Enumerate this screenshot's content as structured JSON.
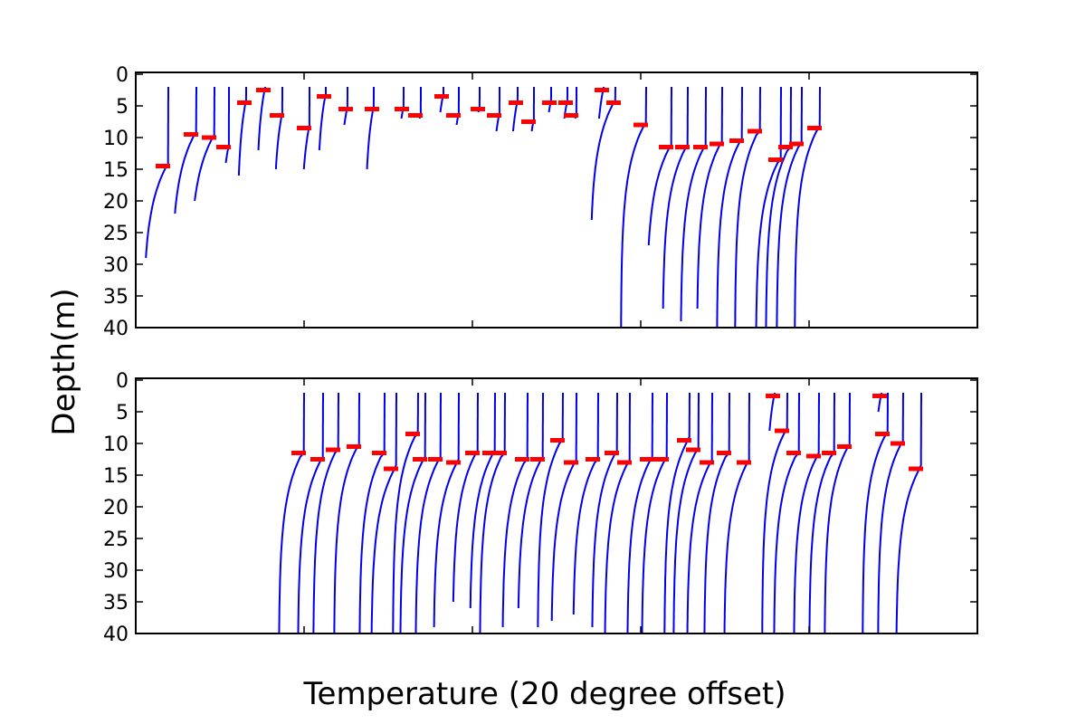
{
  "chart_data": {
    "type": "line",
    "xlabel": "Temperature (20 degree offset)",
    "ylabel": "Depth(m)",
    "ylim": [
      0,
      40
    ],
    "y_inverted": true,
    "yticks": [
      "0",
      "5",
      "10",
      "15",
      "20",
      "25",
      "30",
      "35",
      "40"
    ],
    "x_tick_labels_shown": false,
    "grid": false,
    "legend": "none",
    "colors": {
      "profile": "#0000ee",
      "mixed_layer_marker": "#ff0000"
    },
    "panels": [
      {
        "name": "top",
        "profiles": [
          {
            "x": 186,
            "z": 29,
            "mld": 14.5
          },
          {
            "x": 217,
            "z": 22,
            "mld": 9.5
          },
          {
            "x": 237,
            "z": 20,
            "mld": 10
          },
          {
            "x": 253,
            "z": 14,
            "mld": 11.5
          },
          {
            "x": 272,
            "z": 16,
            "mld": 4.5
          },
          {
            "x": 293,
            "z": 12,
            "mld": 2.5
          },
          {
            "x": 312,
            "z": 15,
            "mld": 6.5
          },
          {
            "x": 342,
            "z": 15,
            "mld": 8.5
          },
          {
            "x": 360,
            "z": 12,
            "mld": 3.5
          },
          {
            "x": 384,
            "z": 8,
            "mld": 5.5
          },
          {
            "x": 413,
            "z": 15,
            "mld": 5.5
          },
          {
            "x": 446,
            "z": 7,
            "mld": 5.5
          },
          {
            "x": 465,
            "z": 7,
            "mld": 6.5
          },
          {
            "x": 490,
            "z": 6,
            "mld": 3.5
          },
          {
            "x": 507,
            "z": 8,
            "mld": 6.5
          },
          {
            "x": 530,
            "z": 6,
            "mld": 5.5
          },
          {
            "x": 552,
            "z": 9,
            "mld": 6.5
          },
          {
            "x": 572,
            "z": 9,
            "mld": 4.5
          },
          {
            "x": 590,
            "z": 9,
            "mld": 7.5
          },
          {
            "x": 609,
            "z": 6,
            "mld": 4.5
          },
          {
            "x": 627,
            "z": 7,
            "mld": 4.5
          },
          {
            "x": 637,
            "z": 7,
            "mld": 6.5
          },
          {
            "x": 667,
            "z": 7,
            "mld": 2.5
          },
          {
            "x": 680,
            "z": 23,
            "mld": 4.5
          },
          {
            "x": 714,
            "z": 40,
            "mld": 8
          },
          {
            "x": 742,
            "z": 27,
            "mld": 11.5
          },
          {
            "x": 760,
            "z": 37,
            "mld": 11.5
          },
          {
            "x": 780,
            "z": 39,
            "mld": 11.5
          },
          {
            "x": 798,
            "z": 37,
            "mld": 11
          },
          {
            "x": 820,
            "z": 40,
            "mld": 10.5
          },
          {
            "x": 840,
            "z": 40,
            "mld": 9
          },
          {
            "x": 863,
            "z": 40,
            "mld": 13.5
          },
          {
            "x": 874,
            "z": 40,
            "mld": 11.5
          },
          {
            "x": 886,
            "z": 40,
            "mld": 11
          },
          {
            "x": 906,
            "z": 40,
            "mld": 8.5
          }
        ]
      },
      {
        "name": "bottom",
        "profiles": [
          {
            "x": 336,
            "z": 40,
            "mld": 11.5
          },
          {
            "x": 357,
            "z": 40,
            "mld": 12.5
          },
          {
            "x": 374,
            "z": 40,
            "mld": 11
          },
          {
            "x": 397,
            "z": 40,
            "mld": 10.5
          },
          {
            "x": 425,
            "z": 40,
            "mld": 11.5
          },
          {
            "x": 438,
            "z": 40,
            "mld": 14
          },
          {
            "x": 462,
            "z": 40,
            "mld": 8.5
          },
          {
            "x": 470,
            "z": 40,
            "mld": 12.5
          },
          {
            "x": 487,
            "z": 40,
            "mld": 12.5
          },
          {
            "x": 507,
            "z": 39,
            "mld": 13
          },
          {
            "x": 528,
            "z": 35,
            "mld": 11.5
          },
          {
            "x": 547,
            "z": 36,
            "mld": 11.5
          },
          {
            "x": 558,
            "z": 40,
            "mld": 11.5
          },
          {
            "x": 583,
            "z": 39,
            "mld": 12.5
          },
          {
            "x": 600,
            "z": 36,
            "mld": 12.5
          },
          {
            "x": 622,
            "z": 39,
            "mld": 9.5
          },
          {
            "x": 637,
            "z": 38,
            "mld": 13
          },
          {
            "x": 661,
            "z": 37,
            "mld": 12.5
          },
          {
            "x": 682,
            "z": 39,
            "mld": 11.5
          },
          {
            "x": 696,
            "z": 40,
            "mld": 13
          },
          {
            "x": 721,
            "z": 40,
            "mld": 12.5
          },
          {
            "x": 737,
            "z": 40,
            "mld": 12.5
          },
          {
            "x": 762,
            "z": 40,
            "mld": 9.5
          },
          {
            "x": 772,
            "z": 40,
            "mld": 11
          },
          {
            "x": 787,
            "z": 40,
            "mld": 13
          },
          {
            "x": 806,
            "z": 40,
            "mld": 11.5
          },
          {
            "x": 828,
            "z": 40,
            "mld": 13
          },
          {
            "x": 856,
            "z": 8,
            "mld": 2.5
          },
          {
            "x": 870,
            "z": 40,
            "mld": 8
          },
          {
            "x": 883,
            "z": 40,
            "mld": 11.5
          },
          {
            "x": 905,
            "z": 40,
            "mld": 12
          },
          {
            "x": 922,
            "z": 40,
            "mld": 11.5
          },
          {
            "x": 939,
            "z": 40,
            "mld": 10.5
          },
          {
            "x": 974,
            "z": 5,
            "mld": 2.5
          },
          {
            "x": 981,
            "z": 40,
            "mld": 8.5
          },
          {
            "x": 998,
            "z": 40,
            "mld": 10
          },
          {
            "x": 1018,
            "z": 40,
            "mld": 14
          }
        ]
      }
    ]
  }
}
